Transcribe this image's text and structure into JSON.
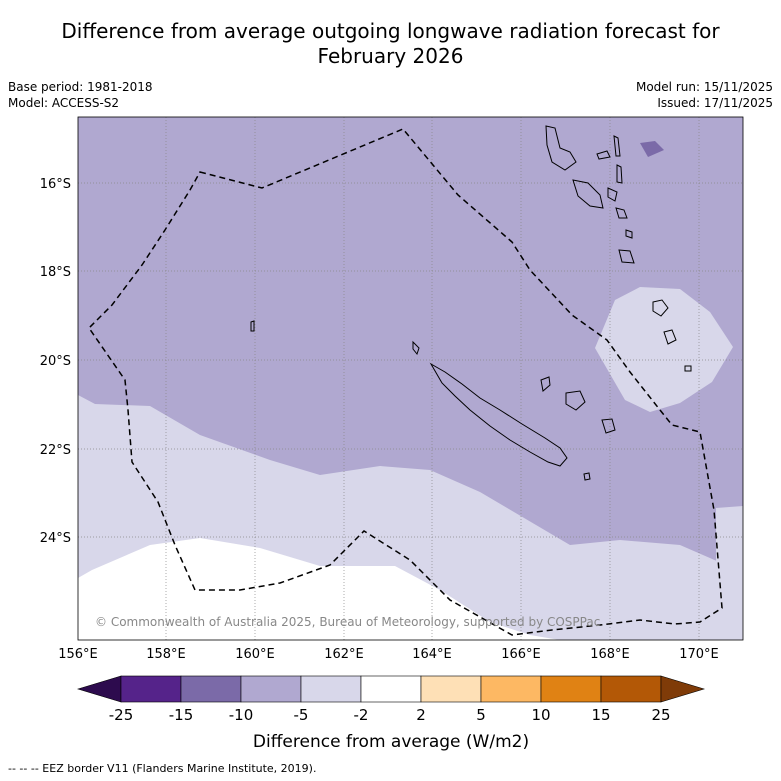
{
  "title_line1": "Difference from average outgoing longwave radiation forecast for",
  "title_line2": "February 2026",
  "meta_left": [
    "Base period: 1981-2018",
    "Model: ACCESS-S2"
  ],
  "meta_right": [
    "Model run: 15/11/2025",
    "Issued: 17/11/2025"
  ],
  "map": {
    "lat_ticks": [
      "16°S",
      "18°S",
      "20°S",
      "22°S",
      "24°S"
    ],
    "lon_ticks": [
      "156°E",
      "158°E",
      "160°E",
      "162°E",
      "164°E",
      "166°E",
      "168°E",
      "170°E"
    ],
    "copyright": "© Commonwealth of Australia 2025, Bureau of Meteorology, supported by COSPPac"
  },
  "colorbar": {
    "title": "Difference from average (W/m2)",
    "labels": [
      "-25",
      "-15",
      "-10",
      "-5",
      "-2",
      "2",
      "5",
      "10",
      "15",
      "25"
    ],
    "colors": [
      "#2d0b4e",
      "#55238a",
      "#7b6aa8",
      "#b0a8d0",
      "#d8d7ea",
      "#ffffff",
      "#fee0b6",
      "#fdb863",
      "#e08214",
      "#b35806",
      "#7f3b08"
    ]
  },
  "footnote": "--  --  -- EEZ border V11 (Flanders Marine Institute, 2019)."
}
